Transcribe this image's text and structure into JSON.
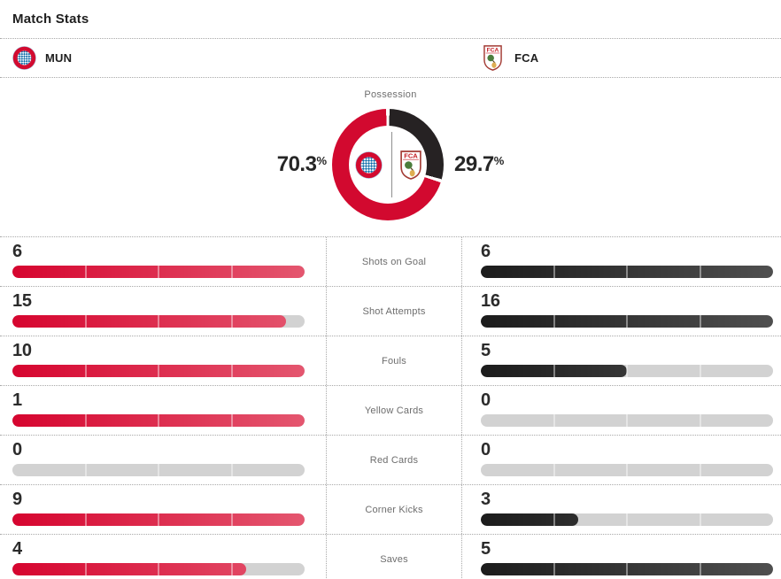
{
  "page": {
    "title": "Match Stats"
  },
  "teams": {
    "home": {
      "abbr": "MUN",
      "name": "Bayern Munich"
    },
    "away": {
      "abbr": "FCA",
      "name": "Augsburg"
    }
  },
  "icons": {
    "home_logo": "bayern-munich-crest",
    "away_logo": "augsburg-crest"
  },
  "possession": {
    "label": "Possession",
    "home_pct": "70.3",
    "away_pct": "29.7",
    "unit": "%"
  },
  "stats": {
    "rows": [
      {
        "label": "Shots on Goal",
        "home": 6,
        "away": 6
      },
      {
        "label": "Shot Attempts",
        "home": 15,
        "away": 16
      },
      {
        "label": "Fouls",
        "home": 10,
        "away": 5
      },
      {
        "label": "Yellow Cards",
        "home": 1,
        "away": 0
      },
      {
        "label": "Red Cards",
        "home": 0,
        "away": 0
      },
      {
        "label": "Corner Kicks",
        "home": 9,
        "away": 3
      },
      {
        "label": "Saves",
        "home": 4,
        "away": 5
      }
    ]
  },
  "colors": {
    "home_bar_start": "#d6052f",
    "home_bar_end": "#e4566f",
    "away_bar_start": "#1c1c1c",
    "away_bar_end": "#4f4f4f",
    "bar_track": "#d2d2d2",
    "home_donut": "#d2092f",
    "away_donut": "#262223",
    "dotted_border": "#a9a9a9",
    "label_gray": "#6d6d6d",
    "text_dark": "#1e1e1e"
  },
  "chart_data": [
    {
      "type": "pie",
      "title": "Possession",
      "labels": [
        "MUN",
        "FCA"
      ],
      "values": [
        70.3,
        29.7
      ],
      "unit": "%",
      "colors": [
        "#d2092f",
        "#262223"
      ],
      "layout": "donut with team crests inside, FCA slice starts at 12 o'clock clockwise"
    },
    {
      "type": "bar",
      "title": "Match Stats",
      "categories": [
        "Shots on Goal",
        "Shot Attempts",
        "Fouls",
        "Yellow Cards",
        "Red Cards",
        "Corner Kicks",
        "Saves"
      ],
      "series": [
        {
          "name": "MUN",
          "values": [
            6,
            15,
            10,
            1,
            0,
            9,
            4
          ]
        },
        {
          "name": "FCA",
          "values": [
            6,
            16,
            5,
            0,
            0,
            3,
            5
          ]
        }
      ],
      "layout": "horizontal paired bars, each row normalized to the max of the two values, 4 segments per track"
    }
  ]
}
